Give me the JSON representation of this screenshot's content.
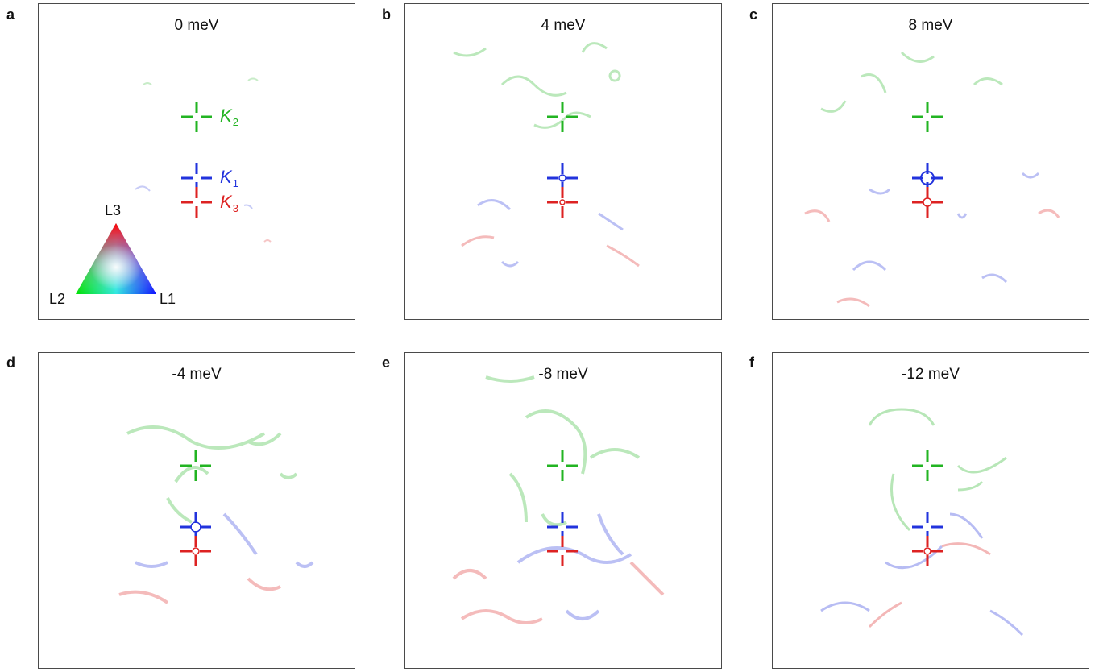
{
  "colors": {
    "green": "#22b422",
    "blue": "#2233dd",
    "red": "#dd2222"
  },
  "panels": [
    {
      "letter": "a",
      "title": "0 meV"
    },
    {
      "letter": "b",
      "title": "4 meV"
    },
    {
      "letter": "c",
      "title": "8 meV"
    },
    {
      "letter": "d",
      "title": "-4 meV"
    },
    {
      "letter": "e",
      "title": "-8 meV"
    },
    {
      "letter": "f",
      "title": "-12 meV"
    }
  ],
  "k_labels": {
    "k2": "K",
    "k2_sub": "2",
    "k1": "K",
    "k1_sub": "1",
    "k3": "K",
    "k3_sub": "3"
  },
  "legend": {
    "top": "L3",
    "left": "L2",
    "right": "L1"
  }
}
